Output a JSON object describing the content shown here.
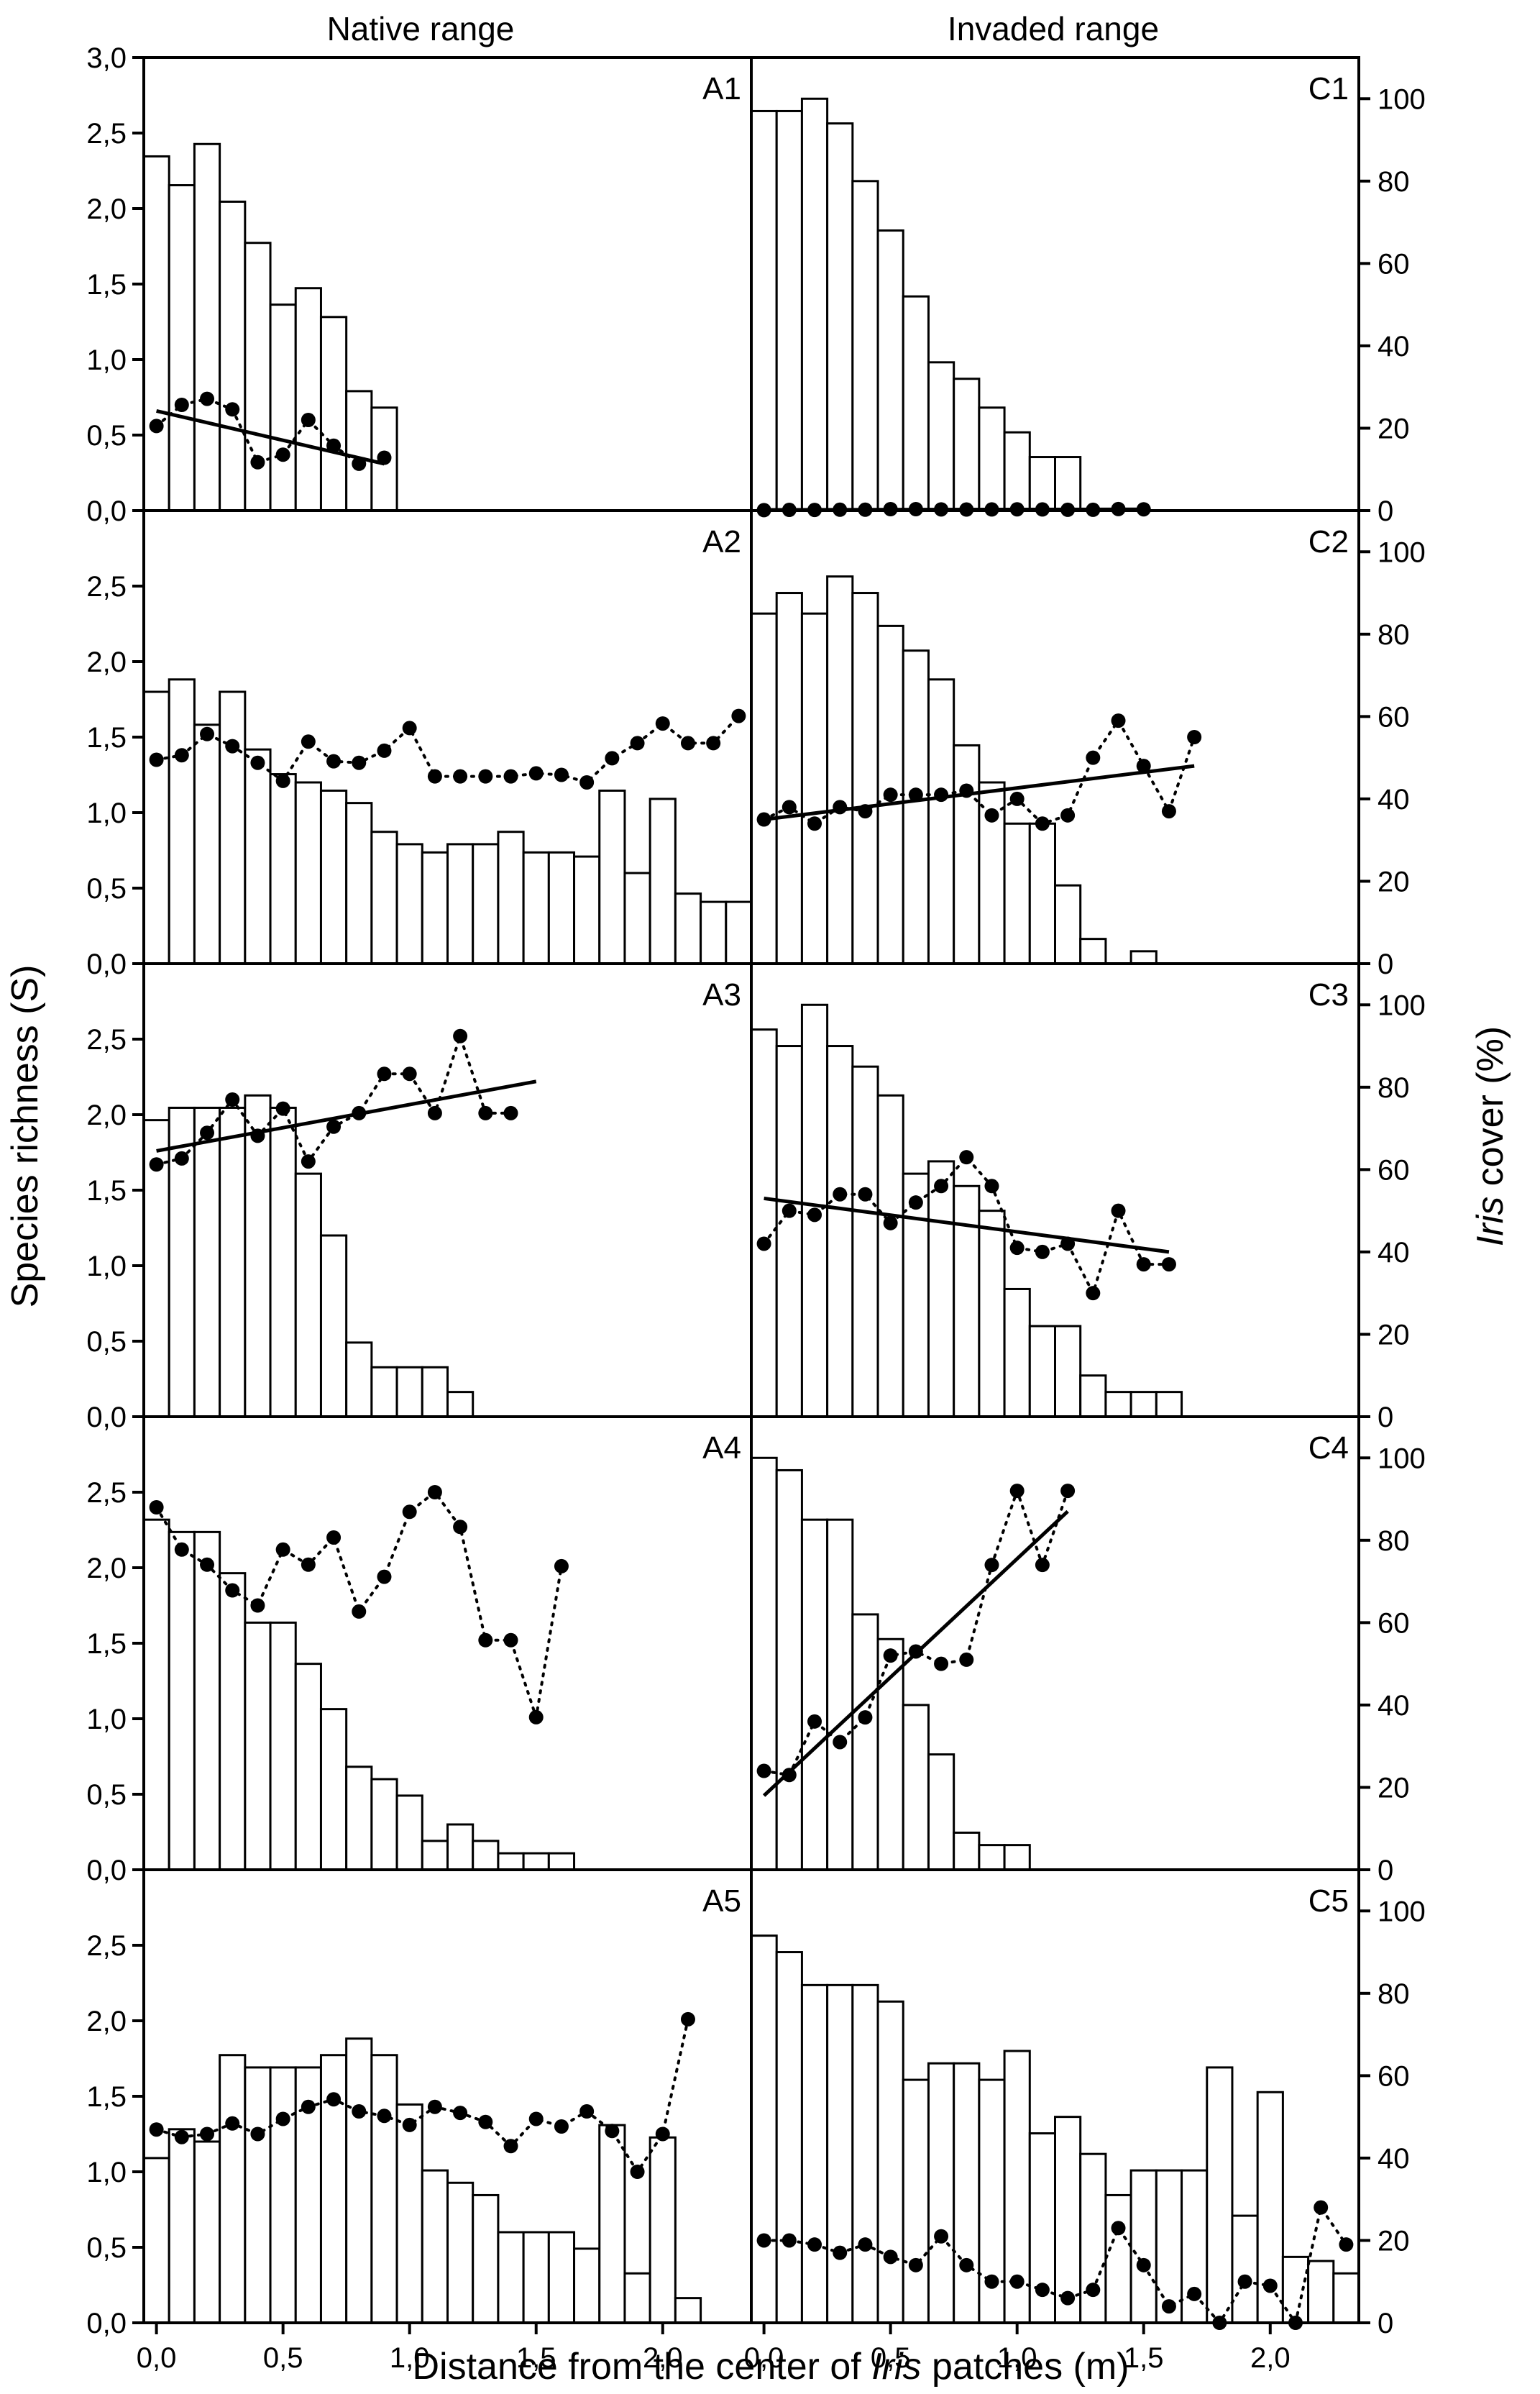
{
  "figure": {
    "col_titles": [
      "Native range",
      "Invaded range"
    ],
    "xlabel_pre": "Distance from the center of ",
    "xlabel_italic": "Iris",
    "xlabel_post": " patches (m)",
    "ylabel_left": "Species richness (S)",
    "ylabel_right_italic": "Iris",
    "ylabel_right_post": " cover (%)"
  },
  "chart_data": [
    {
      "type": "bar",
      "label": "A1",
      "column": "native",
      "xlim": [
        -0.05,
        2.35
      ],
      "ylim_left": [
        0,
        3.0
      ],
      "ylim_right": [
        0,
        110
      ],
      "yticks_left": [
        "0,0",
        "0,5",
        "1,0",
        "1,5",
        "2,0",
        "2,5",
        "3,0"
      ],
      "yticks_right": [
        "0",
        "20",
        "40",
        "60",
        "80",
        "100"
      ],
      "bar_width": 0.1,
      "bars": {
        "x": [
          0.0,
          0.1,
          0.2,
          0.3,
          0.4,
          0.5,
          0.6,
          0.7,
          0.8,
          0.9
        ],
        "cover_percent": [
          86,
          79,
          89,
          75,
          65,
          50,
          54,
          47,
          29,
          25
        ]
      },
      "richness": {
        "x": [
          0.0,
          0.1,
          0.2,
          0.3,
          0.4,
          0.5,
          0.6,
          0.7,
          0.8,
          0.9
        ],
        "values": [
          0.56,
          0.7,
          0.74,
          0.67,
          0.32,
          0.37,
          0.6,
          0.43,
          0.31,
          0.35
        ]
      },
      "trend": {
        "x": [
          0.0,
          0.9
        ],
        "y": [
          0.66,
          0.31
        ]
      }
    },
    {
      "type": "bar",
      "label": "A2",
      "column": "native",
      "xlim": [
        -0.05,
        2.35
      ],
      "ylim_left": [
        0,
        3.0
      ],
      "ylim_right": [
        0,
        110
      ],
      "yticks_left": [
        "0,0",
        "0,5",
        "1,0",
        "1,5",
        "2,0",
        "2,5"
      ],
      "yticks_right": [
        "0",
        "20",
        "40",
        "60",
        "80",
        "100"
      ],
      "bar_width": 0.1,
      "bars": {
        "x": [
          0.0,
          0.1,
          0.2,
          0.3,
          0.4,
          0.5,
          0.6,
          0.7,
          0.8,
          0.9,
          1.0,
          1.1,
          1.2,
          1.3,
          1.4,
          1.5,
          1.6,
          1.7,
          1.8,
          1.9,
          2.0,
          2.1,
          2.2,
          2.3
        ],
        "cover_percent": [
          66,
          69,
          58,
          66,
          52,
          46,
          44,
          42,
          39,
          32,
          29,
          27,
          29,
          29,
          32,
          27,
          27,
          26,
          42,
          22,
          40,
          17,
          15,
          15
        ]
      },
      "richness": {
        "x": [
          0.0,
          0.1,
          0.2,
          0.3,
          0.4,
          0.5,
          0.6,
          0.7,
          0.8,
          0.9,
          1.0,
          1.1,
          1.2,
          1.3,
          1.4,
          1.5,
          1.6,
          1.7,
          1.8,
          1.9,
          2.0,
          2.1,
          2.2,
          2.3
        ],
        "values": [
          1.35,
          1.38,
          1.52,
          1.44,
          1.33,
          1.21,
          1.47,
          1.34,
          1.33,
          1.41,
          1.56,
          1.24,
          1.24,
          1.24,
          1.24,
          1.26,
          1.25,
          1.2,
          1.36,
          1.46,
          1.59,
          1.46,
          1.46,
          1.64
        ]
      }
    },
    {
      "type": "bar",
      "label": "A3",
      "column": "native",
      "xlim": [
        -0.05,
        2.35
      ],
      "ylim_left": [
        0,
        3.0
      ],
      "ylim_right": [
        0,
        110
      ],
      "yticks_left": [
        "0,0",
        "0,5",
        "1,0",
        "1,5",
        "2,0",
        "2,5"
      ],
      "yticks_right": [
        "0",
        "20",
        "40",
        "60",
        "80",
        "100"
      ],
      "bar_width": 0.1,
      "bars": {
        "x": [
          0.0,
          0.1,
          0.2,
          0.3,
          0.4,
          0.5,
          0.6,
          0.7,
          0.8,
          0.9,
          1.0,
          1.1,
          1.2
        ],
        "cover_percent": [
          72,
          75,
          75,
          75,
          78,
          75,
          59,
          44,
          18,
          12,
          12,
          12,
          6
        ]
      },
      "richness": {
        "x": [
          0.0,
          0.1,
          0.2,
          0.3,
          0.4,
          0.5,
          0.6,
          0.7,
          0.8,
          0.9,
          1.0,
          1.1,
          1.2,
          1.3,
          1.4
        ],
        "values": [
          1.67,
          1.71,
          1.88,
          2.1,
          1.86,
          2.04,
          1.69,
          1.92,
          2.01,
          2.27,
          2.27,
          2.01,
          2.52,
          2.01,
          2.01
        ]
      },
      "trend": {
        "x": [
          0.0,
          1.5
        ],
        "y": [
          1.76,
          2.22
        ]
      }
    },
    {
      "type": "bar",
      "label": "A4",
      "column": "native",
      "xlim": [
        -0.05,
        2.35
      ],
      "ylim_left": [
        0,
        3.0
      ],
      "ylim_right": [
        0,
        110
      ],
      "yticks_left": [
        "0,0",
        "0,5",
        "1,0",
        "1,5",
        "2,0",
        "2,5"
      ],
      "yticks_right": [
        "0",
        "20",
        "40",
        "60",
        "80",
        "100"
      ],
      "bar_width": 0.1,
      "bars": {
        "x": [
          0.0,
          0.1,
          0.2,
          0.3,
          0.4,
          0.5,
          0.6,
          0.7,
          0.8,
          0.9,
          1.0,
          1.1,
          1.2,
          1.3,
          1.4,
          1.5,
          1.6
        ],
        "cover_percent": [
          85,
          82,
          82,
          72,
          60,
          60,
          50,
          39,
          25,
          22,
          18,
          7,
          11,
          7,
          4,
          4,
          4
        ]
      },
      "richness": {
        "x": [
          0.0,
          0.1,
          0.2,
          0.3,
          0.4,
          0.5,
          0.6,
          0.7,
          0.8,
          0.9,
          1.0,
          1.1,
          1.2,
          1.3,
          1.4,
          1.5,
          1.6
        ],
        "values": [
          2.4,
          2.12,
          2.02,
          1.85,
          1.75,
          2.12,
          2.02,
          2.2,
          1.71,
          1.94,
          2.37,
          2.5,
          2.27,
          1.52,
          1.52,
          1.01,
          2.01
        ]
      }
    },
    {
      "type": "bar",
      "label": "A5",
      "column": "native",
      "xlim": [
        -0.05,
        2.35
      ],
      "ylim_left": [
        0,
        3.0
      ],
      "ylim_right": [
        0,
        110
      ],
      "yticks_left": [
        "0,0",
        "0,5",
        "1,0",
        "1,5",
        "2,0",
        "2,5"
      ],
      "yticks_right": [
        "0",
        "20",
        "40",
        "60",
        "80",
        "100"
      ],
      "bar_width": 0.1,
      "bars": {
        "x": [
          0.0,
          0.1,
          0.2,
          0.3,
          0.4,
          0.5,
          0.6,
          0.7,
          0.8,
          0.9,
          1.0,
          1.1,
          1.2,
          1.3,
          1.4,
          1.5,
          1.6,
          1.7,
          1.8,
          1.9,
          2.0,
          2.1
        ],
        "cover_percent": [
          40,
          47,
          44,
          65,
          62,
          62,
          62,
          65,
          69,
          65,
          53,
          37,
          34,
          31,
          22,
          22,
          22,
          18,
          48,
          12,
          45,
          6
        ]
      },
      "richness": {
        "x": [
          0.0,
          0.1,
          0.2,
          0.3,
          0.4,
          0.5,
          0.6,
          0.7,
          0.8,
          0.9,
          1.0,
          1.1,
          1.2,
          1.3,
          1.4,
          1.5,
          1.6,
          1.7,
          1.8,
          1.9,
          2.0,
          2.1
        ],
        "values": [
          1.28,
          1.23,
          1.25,
          1.32,
          1.25,
          1.35,
          1.43,
          1.48,
          1.4,
          1.37,
          1.31,
          1.43,
          1.39,
          1.33,
          1.17,
          1.35,
          1.3,
          1.4,
          1.27,
          1.0,
          1.25,
          2.01
        ]
      }
    },
    {
      "type": "bar",
      "label": "C1",
      "column": "invaded",
      "xlim": [
        -0.05,
        2.35
      ],
      "ylim_left": [
        0,
        3.0
      ],
      "ylim_right": [
        0,
        110
      ],
      "yticks_left": [
        "0,0",
        "0,5",
        "1,0",
        "1,5",
        "2,0",
        "2,5",
        "3,0"
      ],
      "yticks_right": [
        "0",
        "20",
        "40",
        "60",
        "80",
        "100"
      ],
      "bar_width": 0.1,
      "bars": {
        "x": [
          0.0,
          0.1,
          0.2,
          0.3,
          0.4,
          0.5,
          0.6,
          0.7,
          0.8,
          0.9,
          1.0,
          1.1,
          1.2
        ],
        "cover_percent": [
          97,
          97,
          100,
          94,
          80,
          68,
          52,
          36,
          32,
          25,
          19,
          13,
          13
        ]
      },
      "richness": {
        "x": [
          0.0,
          0.1,
          0.2,
          0.3,
          0.4,
          0.5,
          0.6,
          0.7,
          0.8,
          0.9,
          1.0,
          1.1,
          1.2,
          1.3,
          1.4,
          1.5
        ],
        "values": [
          0.11,
          0.17,
          0.16,
          0.21,
          0.21,
          0.35,
          0.35,
          0.29,
          0.26,
          0.28,
          0.31,
          0.28,
          0.19,
          0.19,
          0.37,
          0.31
        ]
      },
      "trend": {
        "x": [
          0.0,
          1.5
        ],
        "y": [
          0.185,
          0.305
        ]
      },
      "richness_axis": "right"
    },
    {
      "type": "bar",
      "label": "C2",
      "column": "invaded",
      "xlim": [
        -0.05,
        2.35
      ],
      "ylim_left": [
        0,
        3.0
      ],
      "ylim_right": [
        0,
        110
      ],
      "yticks_left": [
        "0,0",
        "0,5",
        "1,0",
        "1,5",
        "2,0",
        "2,5"
      ],
      "yticks_right": [
        "0",
        "20",
        "40",
        "60",
        "80",
        "100"
      ],
      "bar_width": 0.1,
      "bars": {
        "x": [
          0.0,
          0.1,
          0.2,
          0.3,
          0.4,
          0.5,
          0.6,
          0.7,
          0.8,
          0.9,
          1.0,
          1.1,
          1.2,
          1.3,
          1.4,
          1.5
        ],
        "cover_percent": [
          85,
          90,
          85,
          94,
          90,
          82,
          76,
          69,
          53,
          44,
          34,
          34,
          19,
          6,
          0,
          3
        ]
      },
      "richness": {
        "x": [
          0.0,
          0.1,
          0.2,
          0.3,
          0.4,
          0.5,
          0.6,
          0.7,
          0.8,
          0.9,
          1.0,
          1.1,
          1.2,
          1.3,
          1.4,
          1.5,
          1.6,
          1.7
        ],
        "values": [
          35,
          38,
          34,
          38,
          37,
          41,
          41,
          41,
          42,
          36,
          40,
          34,
          36,
          50,
          59,
          48,
          37,
          55
        ]
      },
      "trend": {
        "x": [
          0.0,
          1.7
        ],
        "y": [
          35,
          48
        ]
      },
      "richness_axis": "right"
    },
    {
      "type": "bar",
      "label": "C3",
      "column": "invaded",
      "xlim": [
        -0.05,
        2.35
      ],
      "ylim_left": [
        0,
        3.0
      ],
      "ylim_right": [
        0,
        110
      ],
      "yticks_left": [
        "0,0",
        "0,5",
        "1,0",
        "1,5",
        "2,0",
        "2,5"
      ],
      "yticks_right": [
        "0",
        "20",
        "40",
        "60",
        "80",
        "100"
      ],
      "bar_width": 0.1,
      "bars": {
        "x": [
          0.0,
          0.1,
          0.2,
          0.3,
          0.4,
          0.5,
          0.6,
          0.7,
          0.8,
          0.9,
          1.0,
          1.1,
          1.2,
          1.3,
          1.4,
          1.5,
          1.6
        ],
        "cover_percent": [
          94,
          90,
          100,
          90,
          85,
          78,
          59,
          62,
          56,
          50,
          31,
          22,
          22,
          10,
          6,
          6,
          6
        ]
      },
      "richness": {
        "x": [
          0.0,
          0.1,
          0.2,
          0.3,
          0.4,
          0.5,
          0.6,
          0.7,
          0.8,
          0.9,
          1.0,
          1.1,
          1.2,
          1.3,
          1.4,
          1.5,
          1.6
        ],
        "values": [
          42,
          50,
          49,
          54,
          54,
          47,
          52,
          56,
          63,
          56,
          41,
          40,
          42,
          30,
          50,
          37,
          37
        ]
      },
      "trend": {
        "x": [
          0.0,
          1.6
        ],
        "y": [
          53,
          40
        ]
      },
      "richness_axis": "right"
    },
    {
      "type": "bar",
      "label": "C4",
      "column": "invaded",
      "xlim": [
        -0.05,
        2.35
      ],
      "ylim_left": [
        0,
        3.0
      ],
      "ylim_right": [
        0,
        110
      ],
      "yticks_left": [
        "0,0",
        "0,5",
        "1,0",
        "1,5",
        "2,0",
        "2,5"
      ],
      "yticks_right": [
        "0",
        "20",
        "40",
        "60",
        "80",
        "100"
      ],
      "bar_width": 0.1,
      "bars": {
        "x": [
          0.0,
          0.1,
          0.2,
          0.3,
          0.4,
          0.5,
          0.6,
          0.7,
          0.8,
          0.9,
          1.0
        ],
        "cover_percent": [
          100,
          97,
          85,
          85,
          62,
          56,
          40,
          28,
          9,
          6,
          6
        ]
      },
      "richness": {
        "x": [
          0.0,
          0.1,
          0.2,
          0.3,
          0.4,
          0.5,
          0.6,
          0.7,
          0.8,
          0.9,
          1.0,
          1.1,
          1.2
        ],
        "values": [
          24,
          23,
          36,
          31,
          37,
          52,
          53,
          50,
          51,
          74,
          92,
          74,
          92
        ]
      },
      "trend": {
        "x": [
          0.0,
          1.2
        ],
        "y": [
          18,
          87
        ]
      },
      "richness_axis": "right"
    },
    {
      "type": "bar",
      "label": "C5",
      "column": "invaded",
      "xlim": [
        -0.05,
        2.35
      ],
      "ylim_left": [
        0,
        3.0
      ],
      "ylim_right": [
        0,
        110
      ],
      "yticks_left": [
        "0,0",
        "0,5",
        "1,0",
        "1,5",
        "2,0",
        "2,5"
      ],
      "yticks_right": [
        "0",
        "20",
        "40",
        "60",
        "80",
        "100"
      ],
      "bar_width": 0.1,
      "bars": {
        "x": [
          0.0,
          0.1,
          0.2,
          0.3,
          0.4,
          0.5,
          0.6,
          0.7,
          0.8,
          0.9,
          1.0,
          1.1,
          1.2,
          1.3,
          1.4,
          1.5,
          1.6,
          1.7,
          1.8,
          1.9,
          2.0,
          2.1,
          2.2,
          2.3
        ],
        "cover_percent": [
          94,
          90,
          82,
          82,
          82,
          78,
          59,
          63,
          63,
          59,
          66,
          46,
          50,
          41,
          31,
          37,
          37,
          37,
          62,
          26,
          56,
          16,
          15,
          12
        ]
      },
      "richness": {
        "x": [
          0.0,
          0.1,
          0.2,
          0.3,
          0.4,
          0.5,
          0.6,
          0.7,
          0.8,
          0.9,
          1.0,
          1.1,
          1.2,
          1.3,
          1.4,
          1.5,
          1.6,
          1.7,
          1.8,
          1.9,
          2.0,
          2.1,
          2.2,
          2.3
        ],
        "values": [
          20,
          20,
          19,
          17,
          19,
          16,
          14,
          21,
          14,
          10,
          10,
          8,
          6,
          8,
          23,
          14,
          4,
          7,
          0,
          10,
          9,
          0,
          28,
          19
        ]
      },
      "richness_axis": "right"
    }
  ]
}
